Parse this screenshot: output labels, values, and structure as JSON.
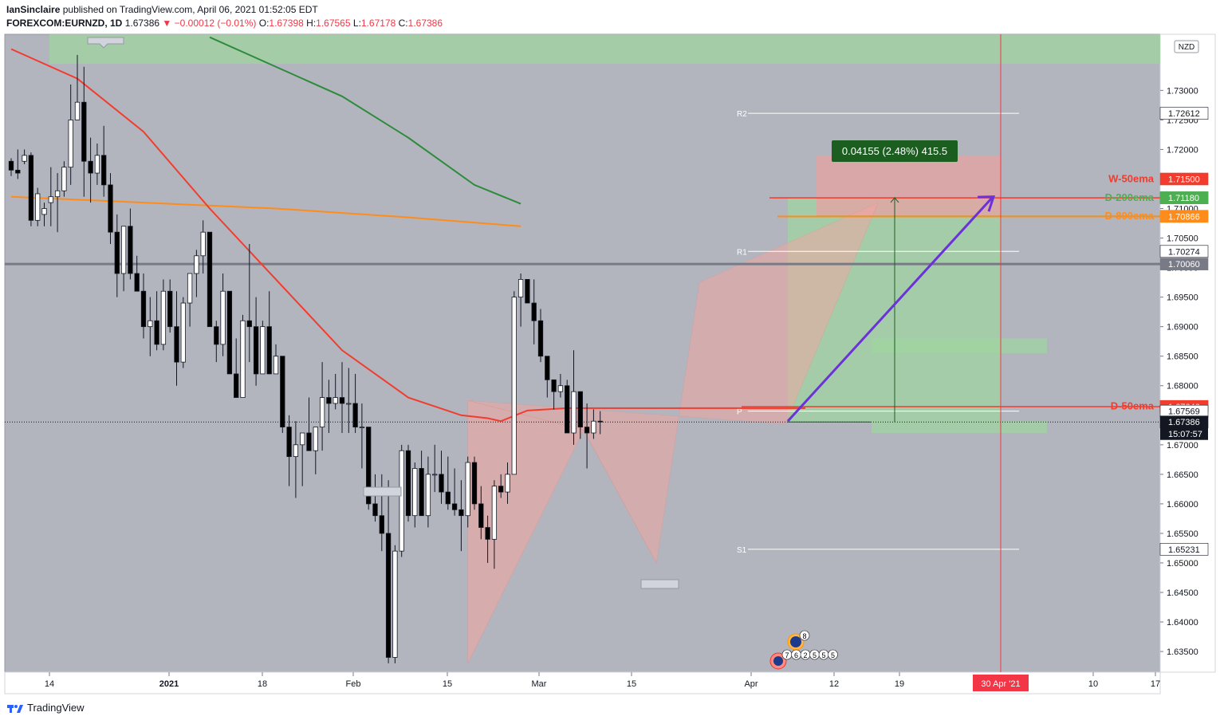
{
  "header": {
    "publisher": "IanSinclaire",
    "published_text": "published on TradingView.com, April 06, 2021 01:52:05 EDT",
    "symbol": "FOREXCOM:EURNZD, 1D",
    "last": "1.67386",
    "arrow": "▼",
    "change": "−0.00012 (−0.01%)",
    "o_label": "O:",
    "o_val": "1.67398",
    "h_label": "H:",
    "h_val": "1.67565",
    "l_label": "L:",
    "l_val": "1.67178",
    "c_label": "C:",
    "c_val": "1.67386"
  },
  "footer": {
    "brand": "TradingView",
    "logo_icon": "tradingview-logo-icon"
  },
  "colors": {
    "plot_bg": "#b2b5be",
    "ema50": "#f23c2e",
    "ema200": "#2e8b3c",
    "ema800": "#ff8c1a",
    "pattern": "#f4a6a0",
    "target_zone": "#e4a4a4",
    "long_zone": "#9fd69f",
    "arrow": "#6a32d8"
  },
  "chart_data": {
    "type": "candlestick",
    "currency_badge": "NZD",
    "ylim": [
      1.6315,
      1.7395
    ],
    "y_ticks": [
      "1.73000",
      "1.72500",
      "1.72000",
      "1.71500",
      "1.71000",
      "1.70500",
      "1.70000",
      "1.69500",
      "1.69000",
      "1.68500",
      "1.68000",
      "1.67500",
      "1.67000",
      "1.66500",
      "1.66000",
      "1.65500",
      "1.65000",
      "1.64500",
      "1.64000",
      "1.63500"
    ],
    "x_ticks": [
      "14",
      "2021",
      "18",
      "Feb",
      "15",
      "Mar",
      "15",
      "Apr",
      "12",
      "19",
      "10",
      "17"
    ],
    "x_tick_index": [
      0,
      13,
      24,
      34,
      44,
      54,
      64,
      75,
      84,
      91,
      112,
      119
    ],
    "vertical_marker": {
      "label": "30 Apr '21",
      "index": 101
    },
    "candles": [
      [
        1.718,
        1.7185,
        1.7155,
        1.7165
      ],
      [
        1.7165,
        1.72,
        1.715,
        1.716
      ],
      [
        1.718,
        1.72,
        1.7175,
        1.719
      ],
      [
        1.719,
        1.7195,
        1.707,
        1.708
      ],
      [
        1.708,
        1.7135,
        1.707,
        1.7125
      ],
      [
        1.709,
        1.711,
        1.707,
        1.71
      ],
      [
        1.711,
        1.717,
        1.707,
        1.712
      ],
      [
        1.712,
        1.716,
        1.706,
        1.713
      ],
      [
        1.713,
        1.718,
        1.712,
        1.717
      ],
      [
        1.717,
        1.731,
        1.714,
        1.725
      ],
      [
        1.725,
        1.736,
        1.725,
        1.728
      ],
      [
        1.728,
        1.734,
        1.712,
        1.718
      ],
      [
        1.718,
        1.722,
        1.711,
        1.716
      ],
      [
        1.716,
        1.721,
        1.714,
        1.719
      ],
      [
        1.719,
        1.724,
        1.712,
        1.714
      ],
      [
        1.714,
        1.716,
        1.704,
        1.706
      ],
      [
        1.706,
        1.709,
        1.695,
        1.699
      ],
      [
        1.699,
        1.707,
        1.696,
        1.707
      ],
      [
        1.707,
        1.71,
        1.698,
        1.699
      ],
      [
        1.699,
        1.702,
        1.696,
        1.696
      ],
      [
        1.696,
        1.699,
        1.688,
        1.69
      ],
      [
        1.69,
        1.695,
        1.685,
        1.691
      ],
      [
        1.691,
        1.696,
        1.686,
        1.687
      ],
      [
        1.687,
        1.698,
        1.686,
        1.696
      ],
      [
        1.696,
        1.698,
        1.689,
        1.69
      ],
      [
        1.69,
        1.696,
        1.68,
        1.684
      ],
      [
        1.684,
        1.695,
        1.683,
        1.694
      ],
      [
        1.694,
        1.699,
        1.69,
        1.699
      ],
      [
        1.699,
        1.703,
        1.695,
        1.702
      ],
      [
        1.702,
        1.708,
        1.699,
        1.706
      ],
      [
        1.706,
        1.706,
        1.691,
        1.69
      ],
      [
        1.69,
        1.691,
        1.684,
        1.687
      ],
      [
        1.687,
        1.699,
        1.685,
        1.696
      ],
      [
        1.696,
        1.696,
        1.682,
        1.682
      ],
      [
        1.682,
        1.688,
        1.678,
        1.678
      ],
      [
        1.678,
        1.692,
        1.678,
        1.691
      ],
      [
        1.691,
        1.704,
        1.684,
        1.69
      ],
      [
        1.69,
        1.695,
        1.68,
        1.682
      ],
      [
        1.682,
        1.691,
        1.682,
        1.69
      ],
      [
        1.69,
        1.696,
        1.682,
        1.682
      ],
      [
        1.682,
        1.687,
        1.682,
        1.685
      ],
      [
        1.685,
        1.685,
        1.672,
        1.673
      ],
      [
        1.673,
        1.675,
        1.663,
        1.668
      ],
      [
        1.668,
        1.674,
        1.661,
        1.67
      ],
      [
        1.67,
        1.672,
        1.663,
        1.672
      ],
      [
        1.672,
        1.678,
        1.669,
        1.669
      ],
      [
        1.669,
        1.673,
        1.665,
        1.673
      ],
      [
        1.673,
        1.684,
        1.669,
        1.678
      ],
      [
        1.678,
        1.681,
        1.672,
        1.677
      ],
      [
        1.677,
        1.682,
        1.676,
        1.678
      ],
      [
        1.678,
        1.684,
        1.672,
        1.677
      ],
      [
        1.677,
        1.683,
        1.672,
        1.677
      ],
      [
        1.677,
        1.682,
        1.672,
        1.673
      ],
      [
        1.673,
        1.677,
        1.666,
        1.673
      ],
      [
        1.673,
        1.673,
        1.659,
        1.66
      ],
      [
        1.66,
        1.665,
        1.657,
        1.658
      ],
      [
        1.658,
        1.665,
        1.652,
        1.655
      ],
      [
        1.655,
        1.664,
        1.633,
        1.634
      ],
      [
        1.634,
        1.653,
        1.633,
        1.652
      ],
      [
        1.652,
        1.67,
        1.651,
        1.669
      ],
      [
        1.669,
        1.67,
        1.657,
        1.658
      ],
      [
        1.658,
        1.667,
        1.656,
        1.666
      ],
      [
        1.666,
        1.669,
        1.658,
        1.658
      ],
      [
        1.658,
        1.668,
        1.656,
        1.665
      ],
      [
        1.665,
        1.67,
        1.662,
        1.665
      ],
      [
        1.665,
        1.669,
        1.66,
        1.662
      ],
      [
        1.662,
        1.668,
        1.659,
        1.66
      ],
      [
        1.66,
        1.666,
        1.658,
        1.659
      ],
      [
        1.659,
        1.664,
        1.652,
        1.658
      ],
      [
        1.658,
        1.668,
        1.656,
        1.667
      ],
      [
        1.667,
        1.668,
        1.659,
        1.66
      ],
      [
        1.66,
        1.663,
        1.654,
        1.656
      ],
      [
        1.656,
        1.658,
        1.65,
        1.654
      ],
      [
        1.654,
        1.664,
        1.649,
        1.663
      ],
      [
        1.663,
        1.665,
        1.661,
        1.662
      ],
      [
        1.662,
        1.667,
        1.66,
        1.665
      ],
      [
        1.665,
        1.696,
        1.665,
        1.695
      ],
      [
        1.695,
        1.699,
        1.69,
        1.698
      ],
      [
        1.698,
        1.698,
        1.694,
        1.694
      ],
      [
        1.694,
        1.698,
        1.687,
        1.691
      ],
      [
        1.691,
        1.693,
        1.684,
        1.685
      ],
      [
        1.685,
        1.685,
        1.678,
        1.681
      ],
      [
        1.681,
        1.681,
        1.676,
        1.679
      ],
      [
        1.679,
        1.682,
        1.678,
        1.68
      ],
      [
        1.68,
        1.681,
        1.672,
        1.672
      ],
      [
        1.672,
        1.686,
        1.67,
        1.679
      ],
      [
        1.679,
        1.679,
        1.671,
        1.673
      ],
      [
        1.673,
        1.677,
        1.666,
        1.672
      ],
      [
        1.672,
        1.676,
        1.671,
        1.674
      ],
      [
        1.674,
        1.6757,
        1.6718,
        1.6739
      ]
    ],
    "x_step": 8.3,
    "x_origin_index0": 14,
    "ema50": [
      [
        0,
        1.737
      ],
      [
        10,
        1.732
      ],
      [
        20,
        1.723
      ],
      [
        30,
        1.71
      ],
      [
        40,
        1.698
      ],
      [
        50,
        1.686
      ],
      [
        60,
        1.678
      ],
      [
        68,
        1.675
      ],
      [
        72,
        1.6745
      ],
      [
        74,
        1.674
      ],
      [
        78,
        1.6758
      ],
      [
        84,
        1.6762
      ],
      [
        93,
        1.6762
      ],
      [
        120,
        1.6762
      ]
    ],
    "ema200": [
      [
        30,
        1.739
      ],
      [
        40,
        1.734
      ],
      [
        50,
        1.729
      ],
      [
        60,
        1.722
      ],
      [
        70,
        1.714
      ],
      [
        77,
        1.7108
      ]
    ],
    "ema800": [
      [
        0,
        1.712
      ],
      [
        20,
        1.711
      ],
      [
        40,
        1.71
      ],
      [
        60,
        1.7085
      ],
      [
        77,
        1.707
      ]
    ],
    "levels": [
      {
        "name": "R2",
        "value": 1.72612,
        "label": "1.72612"
      },
      {
        "name": "R1",
        "value": 1.70274,
        "label": "1.70274"
      },
      {
        "name": "P",
        "value": 1.67569,
        "label": "1.67569"
      },
      {
        "name": "S1",
        "value": 1.65231,
        "label": "1.65231"
      }
    ],
    "right_labels": [
      {
        "text": "1.71500",
        "value": 1.715,
        "color": "#f23c2e"
      },
      {
        "text": "1.71183",
        "value": 1.71183,
        "color": "#2e8b3c"
      },
      {
        "text": "1.71180",
        "value": 1.7118,
        "color": "#4caf50"
      },
      {
        "text": "1.70870",
        "value": 1.7087,
        "color": "#ff8c1a"
      },
      {
        "text": "1.70866",
        "value": 1.70866,
        "color": "#ff8c1a"
      },
      {
        "text": "1.70274",
        "value": 1.70274,
        "color": "#ffffff"
      },
      {
        "text": "1.70060",
        "value": 1.7006,
        "color": "#787b86"
      },
      {
        "text": "1.67650",
        "value": 1.6765,
        "color": "#f23c2e"
      },
      {
        "text": "1.67646",
        "value": 1.67646,
        "color": "#f23c2e"
      },
      {
        "text": "1.67569",
        "value": 1.67569,
        "color": "#ffffff"
      },
      {
        "text": "1.67386",
        "value": 1.67386,
        "color": "#131722"
      },
      {
        "text": "1.72612",
        "value": 1.72612,
        "color": "#ffffff"
      },
      {
        "text": "1.65231",
        "value": 1.65231,
        "color": "#ffffff"
      }
    ],
    "countdown": "15:07:57",
    "ema_labels": [
      {
        "text": "W-50ema",
        "value": 1.715,
        "color": "#f23c2e"
      },
      {
        "text": "D-200ema",
        "value": 1.7118,
        "color": "#4caf50"
      },
      {
        "text": "D-800ema",
        "value": 1.7087,
        "color": "#ff8c1a"
      },
      {
        "text": "D-50ema",
        "value": 1.6765,
        "color": "#f23c2e"
      }
    ],
    "measure_label": "0.04155 (2.48%) 415.5",
    "pattern_label_ids": "7 6 2 5 5 5",
    "event_badge": "8"
  }
}
